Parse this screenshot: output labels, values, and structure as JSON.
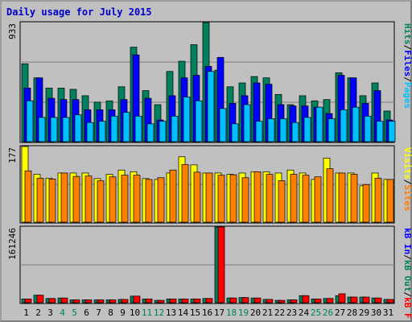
{
  "chart_data": {
    "type": "bar",
    "title": "Daily usage for July 2015",
    "categories": [
      "1",
      "2",
      "3",
      "4",
      "5",
      "6",
      "7",
      "8",
      "9",
      "10",
      "11",
      "12",
      "13",
      "14",
      "15",
      "16",
      "17",
      "18",
      "19",
      "20",
      "21",
      "22",
      "23",
      "24",
      "25",
      "26",
      "27",
      "28",
      "29",
      "30",
      "31"
    ],
    "weekend_days": [
      "4",
      "5",
      "11",
      "12",
      "18",
      "19",
      "25",
      "26"
    ],
    "colors": {
      "hits": "#00805c",
      "files": "#0000ff",
      "pages": "#00c0ff",
      "visits": "#ffff00",
      "sites": "#ff8000",
      "kbin": "#00805c",
      "kbout": "#ff0000",
      "weekday_label": "#000000",
      "weekend_label": "#00805c",
      "background": "#c0c0c0",
      "plot_bg": "#c0c0c0",
      "gridline": "#808080"
    },
    "panels": [
      {
        "id": "hits-files-pages",
        "max_label": "933",
        "ylim": [
          0,
          933
        ],
        "side_labels": [
          {
            "text": "Hits",
            "color": "#00805c"
          },
          {
            "text": "/",
            "color": "#000000"
          },
          {
            "text": "Files",
            "color": "#0000ff"
          },
          {
            "text": "/",
            "color": "#000000"
          },
          {
            "text": "Pages",
            "color": "#00c0ff"
          }
        ],
        "series": [
          {
            "name": "Hits",
            "color": "#00805c",
            "values": [
              610,
              500,
              420,
              420,
              410,
              360,
              310,
              320,
              430,
              740,
              400,
              290,
              550,
              630,
              760,
              933,
              560,
              430,
              460,
              510,
              500,
              370,
              290,
              360,
              320,
              330,
              540,
              500,
              360,
              460,
              240
            ]
          },
          {
            "name": "Files",
            "color": "#0000ff",
            "values": [
              420,
              500,
              340,
              330,
              330,
              250,
              250,
              250,
              330,
              680,
              340,
              170,
              360,
              500,
              520,
              590,
              660,
              300,
              360,
              460,
              450,
              290,
              280,
              280,
              270,
              220,
              520,
              500,
              300,
              400,
              170
            ]
          },
          {
            "name": "Pages",
            "color": "#00c0ff",
            "values": [
              320,
              190,
              190,
              190,
              210,
              150,
              160,
              200,
              230,
              200,
              140,
              160,
              200,
              350,
              320,
              550,
              260,
              140,
              290,
              160,
              180,
              180,
              150,
              190,
              270,
              180,
              250,
              270,
              200,
              160,
              160
            ]
          }
        ]
      },
      {
        "id": "visits-sites",
        "max_label": "177",
        "ylim": [
          0,
          177
        ],
        "side_labels": [
          {
            "text": "Visits",
            "color": "#ffff00"
          },
          {
            "text": "/",
            "color": "#000000"
          },
          {
            "text": "Sites",
            "color": "#ff8000"
          }
        ],
        "series": [
          {
            "name": "Visits",
            "color": "#ffff00",
            "values": [
              177,
              112,
              103,
              115,
              115,
              115,
              102,
              112,
              122,
              118,
              102,
              100,
              115,
              153,
              134,
              115,
              115,
              112,
              115,
              118,
              118,
              115,
              122,
              115,
              100,
              150,
              115,
              115,
              85,
              115,
              100
            ]
          },
          {
            "name": "Sites",
            "color": "#ff8000",
            "values": [
              120,
              103,
              101,
              115,
              107,
              108,
              97,
              106,
              110,
              110,
              100,
              104,
              122,
              135,
              117,
              115,
              110,
              111,
              104,
              118,
              112,
              97,
              112,
              110,
              106,
              125,
              115,
              112,
              88,
              103,
              100
            ]
          }
        ]
      },
      {
        "id": "kbin-kbout",
        "max_label": "161246",
        "ylim": [
          0,
          161246
        ],
        "side_labels": [
          {
            "text": "kB In",
            "color": "#0000ff"
          },
          {
            "text": "/",
            "color": "#000000"
          },
          {
            "text": "kB Out",
            "color": "#00805c"
          },
          {
            "text": "/",
            "color": "#000000"
          },
          {
            "text": "kB F",
            "color": "#ff0000"
          }
        ],
        "series": [
          {
            "name": "kB In",
            "color": "#00805c",
            "values": [
              8000,
              16000,
              9000,
              10000,
              6000,
              6000,
              6000,
              6000,
              7000,
              14000,
              8000,
              5000,
              8000,
              8000,
              8000,
              9000,
              161246,
              10000,
              11000,
              10000,
              7000,
              5000,
              6000,
              15000,
              8000,
              9000,
              15000,
              12000,
              12000,
              10000,
              7000
            ]
          },
          {
            "name": "kB Out",
            "color": "#ff0000",
            "values": [
              8000,
              16000,
              9000,
              10000,
              6000,
              6000,
              6000,
              6000,
              7000,
              14000,
              8000,
              5000,
              8000,
              8000,
              8000,
              9000,
              161246,
              10000,
              11000,
              10000,
              7000,
              5000,
              6000,
              15000,
              8000,
              9000,
              19000,
              12000,
              12000,
              10000,
              7000
            ]
          }
        ]
      }
    ]
  }
}
